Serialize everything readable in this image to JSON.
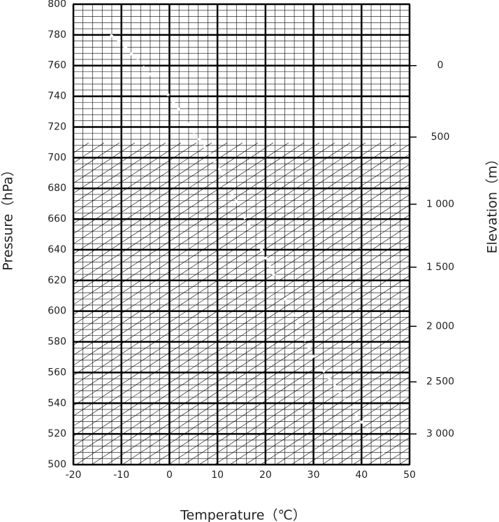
{
  "chart_data": {
    "type": "line",
    "xlabel": "Temperature（℃）",
    "ylabel": "Pressure（hPa）",
    "y2label": "Elevation（m）",
    "xlim": [
      -20,
      50
    ],
    "xticks": [
      -20,
      -10,
      0,
      10,
      20,
      30,
      40,
      50
    ],
    "ylim": [
      800,
      500
    ],
    "yticks": [
      800,
      780,
      760,
      740,
      720,
      700,
      680,
      660,
      640,
      620,
      600,
      580,
      560,
      540,
      520,
      500
    ],
    "y2ticks": [
      0,
      500,
      {
        "value": 1000,
        "label": "1 000"
      },
      {
        "value": 1500,
        "label": "1 500"
      },
      {
        "value": 2000,
        "label": "2 000"
      },
      {
        "value": 2500,
        "label": "2 500"
      },
      {
        "value": 3000,
        "label": "3 000"
      }
    ],
    "grid": true
  }
}
